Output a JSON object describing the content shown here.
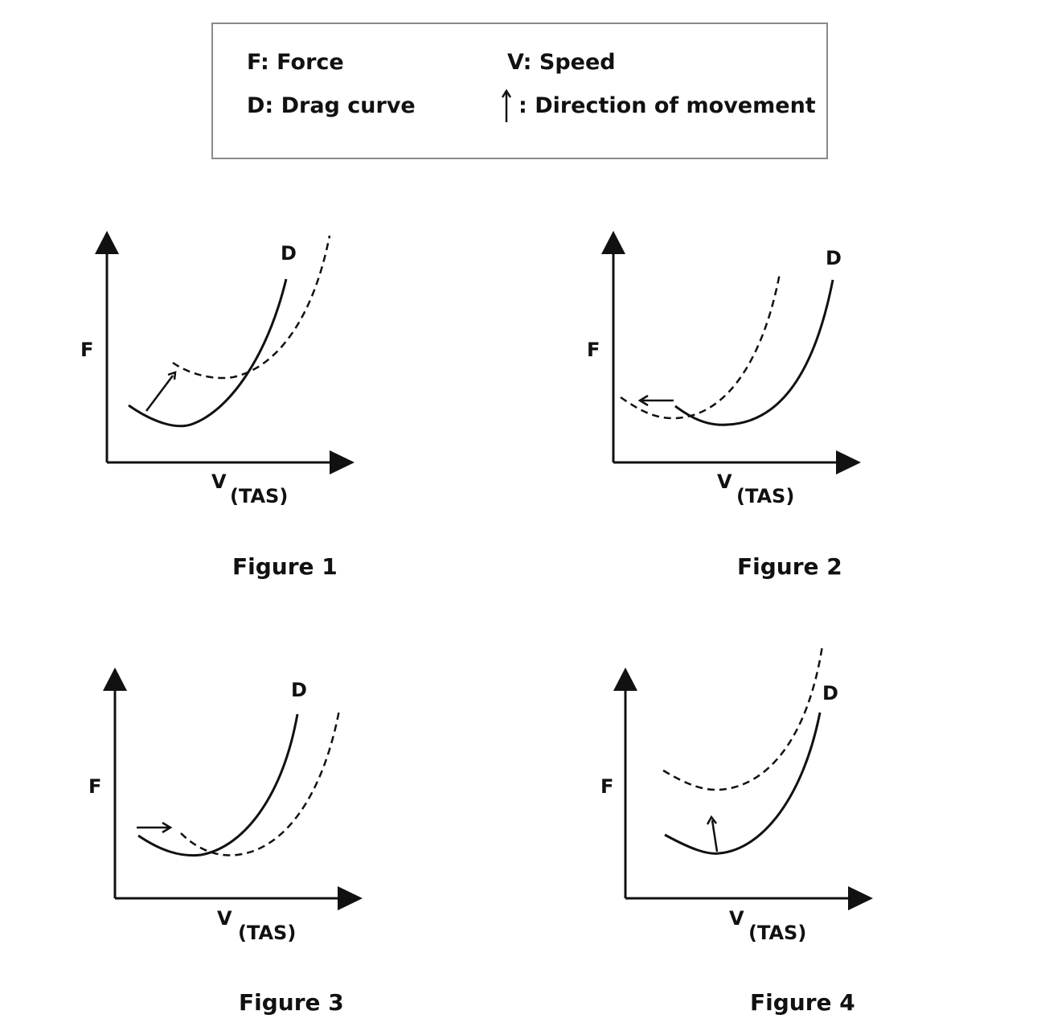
{
  "legend": {
    "force": "F: Force",
    "drag": "D: Drag curve",
    "speed": "V: Speed",
    "direction": ": Direction of movement"
  },
  "axis_labels": {
    "y": "F",
    "x": "V",
    "x_sub": "(TAS)"
  },
  "curve_label": "D",
  "figures": [
    {
      "caption": "Figure 1",
      "shift": "up-right"
    },
    {
      "caption": "Figure 2",
      "shift": "left"
    },
    {
      "caption": "Figure 3",
      "shift": "right"
    },
    {
      "caption": "Figure 4",
      "shift": "up"
    }
  ],
  "colors": {
    "ink": "#111111",
    "legend_border": "#8a8a8a"
  }
}
